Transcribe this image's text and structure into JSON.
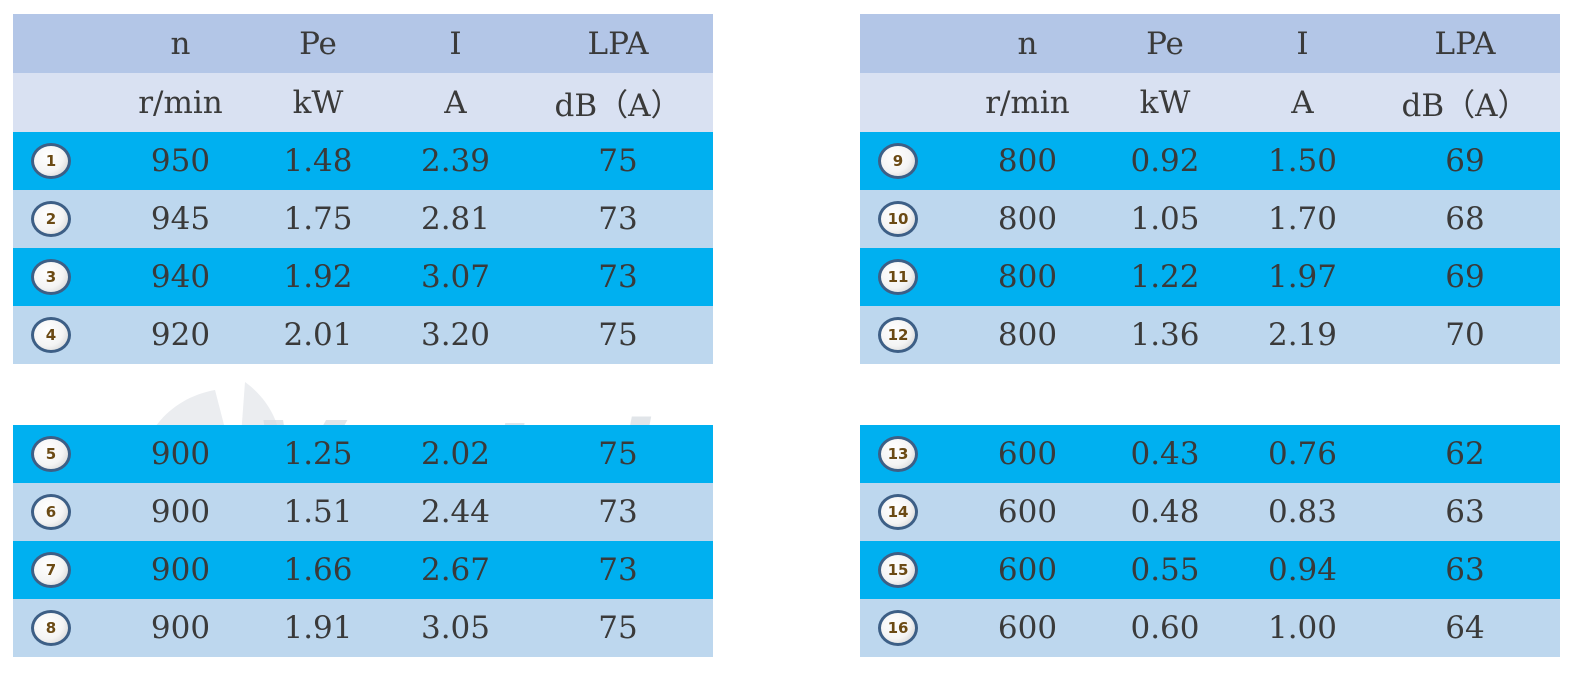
{
  "watermark": "Ventel",
  "headers": {
    "symbols": [
      "n",
      "Pe",
      "I",
      "LPA"
    ],
    "units": [
      "r/min",
      "kW",
      "A",
      "dB（A）"
    ]
  },
  "tables": [
    {
      "rows": [
        {
          "id": "1",
          "n": "950",
          "pe": "1.48",
          "i": "2.39",
          "lpa": "75"
        },
        {
          "id": "2",
          "n": "945",
          "pe": "1.75",
          "i": "2.81",
          "lpa": "73"
        },
        {
          "id": "3",
          "n": "940",
          "pe": "1.92",
          "i": "3.07",
          "lpa": "73"
        },
        {
          "id": "4",
          "n": "920",
          "pe": "2.01",
          "i": "3.20",
          "lpa": "75"
        }
      ]
    },
    {
      "rows": [
        {
          "id": "9",
          "n": "800",
          "pe": "0.92",
          "i": "1.50",
          "lpa": "69"
        },
        {
          "id": "10",
          "n": "800",
          "pe": "1.05",
          "i": "1.70",
          "lpa": "68"
        },
        {
          "id": "11",
          "n": "800",
          "pe": "1.22",
          "i": "1.97",
          "lpa": "69"
        },
        {
          "id": "12",
          "n": "800",
          "pe": "1.36",
          "i": "2.19",
          "lpa": "70"
        }
      ]
    },
    {
      "rows": [
        {
          "id": "5",
          "n": "900",
          "pe": "1.25",
          "i": "2.02",
          "lpa": "75"
        },
        {
          "id": "6",
          "n": "900",
          "pe": "1.51",
          "i": "2.44",
          "lpa": "73"
        },
        {
          "id": "7",
          "n": "900",
          "pe": "1.66",
          "i": "2.67",
          "lpa": "73"
        },
        {
          "id": "8",
          "n": "900",
          "pe": "1.91",
          "i": "3.05",
          "lpa": "75"
        }
      ]
    },
    {
      "rows": [
        {
          "id": "13",
          "n": "600",
          "pe": "0.43",
          "i": "0.76",
          "lpa": "62"
        },
        {
          "id": "14",
          "n": "600",
          "pe": "0.48",
          "i": "0.83",
          "lpa": "63"
        },
        {
          "id": "15",
          "n": "600",
          "pe": "0.55",
          "i": "0.94",
          "lpa": "63"
        },
        {
          "id": "16",
          "n": "600",
          "pe": "0.60",
          "i": "1.00",
          "lpa": "64"
        }
      ]
    }
  ],
  "colors": {
    "header_dark": "#b3c6e7",
    "header_light": "#d9e1f2",
    "row_dark": "#00b0f0",
    "row_light": "#bdd7ee",
    "badge_border": "#3d5f86"
  }
}
